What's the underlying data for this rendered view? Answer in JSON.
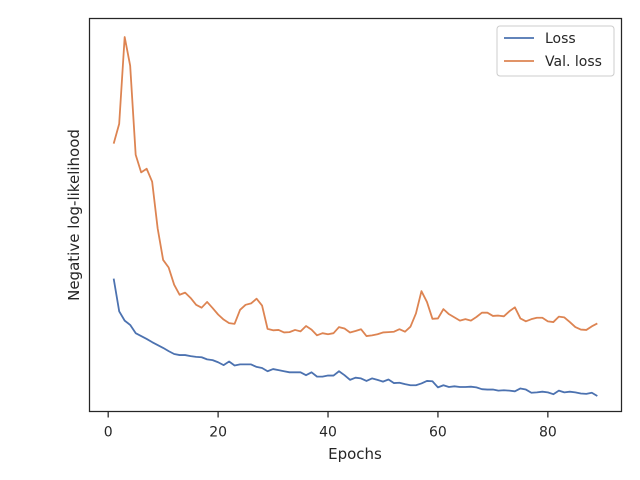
{
  "chart_data": {
    "type": "line",
    "title": "",
    "xlabel": "Epochs",
    "ylabel": "Negative log-likelihood",
    "xlim": [
      -3.4,
      93.4
    ],
    "ylim": [
      0,
      100
    ],
    "xticks": [
      0,
      20,
      40,
      60,
      80
    ],
    "xtick_labels": [
      "0",
      "20",
      "40",
      "60",
      "80"
    ],
    "show_yticks": false,
    "grid": false,
    "legend": "upper right",
    "x": [
      1,
      2,
      3,
      4,
      5,
      6,
      7,
      8,
      9,
      10,
      11,
      12,
      13,
      14,
      15,
      16,
      17,
      18,
      19,
      20,
      21,
      22,
      23,
      24,
      25,
      26,
      27,
      28,
      29,
      30,
      31,
      32,
      33,
      34,
      35,
      36,
      37,
      38,
      39,
      40,
      41,
      42,
      43,
      44,
      45,
      46,
      47,
      48,
      49,
      50,
      51,
      52,
      53,
      54,
      55,
      56,
      57,
      58,
      59,
      60,
      61,
      62,
      63,
      64,
      65,
      66,
      67,
      68,
      69,
      70,
      71,
      72,
      73,
      74,
      75,
      76,
      77,
      78,
      79,
      80,
      81,
      82,
      83,
      84,
      85,
      86,
      87,
      88,
      89
    ],
    "series": [
      {
        "name": "Loss",
        "color": "#4c72b0",
        "values": [
          32.7,
          23.6,
          21.0,
          19.8,
          17.5,
          16.7,
          15.9,
          15.0,
          14.2,
          13.4,
          12.5,
          11.7,
          11.4,
          11.4,
          11.1,
          10.9,
          10.8,
          10.2,
          10.0,
          9.4,
          8.6,
          9.6,
          8.5,
          8.8,
          8.8,
          8.8,
          8.1,
          7.8,
          6.9,
          7.5,
          7.2,
          6.9,
          6.6,
          6.6,
          6.6,
          5.8,
          6.6,
          5.4,
          5.4,
          5.7,
          5.7,
          6.9,
          5.8,
          4.5,
          5.1,
          4.9,
          4.2,
          4.9,
          4.5,
          4.0,
          4.6,
          3.6,
          3.7,
          3.3,
          3.0,
          3.0,
          3.5,
          4.2,
          4.1,
          2.4,
          3.0,
          2.5,
          2.7,
          2.5,
          2.5,
          2.6,
          2.4,
          1.9,
          1.8,
          1.8,
          1.5,
          1.6,
          1.5,
          1.3,
          2.1,
          1.8,
          0.9,
          1.0,
          1.2,
          1.0,
          0.5,
          1.5,
          1.0,
          1.2,
          1.0,
          0.7,
          0.6,
          0.9,
          0.0
        ]
      },
      {
        "name": "Val. loss",
        "color": "#dd8452",
        "values": [
          70.3,
          75.8,
          100.0,
          92.0,
          67.2,
          62.3,
          63.3,
          59.7,
          46.7,
          37.9,
          35.8,
          31.0,
          28.2,
          28.8,
          27.3,
          25.4,
          24.6,
          26.2,
          24.5,
          22.7,
          21.3,
          20.3,
          20.1,
          24.0,
          25.4,
          25.8,
          27.1,
          25.2,
          18.7,
          18.3,
          18.4,
          17.7,
          17.8,
          18.4,
          18.0,
          19.5,
          18.5,
          16.9,
          17.5,
          17.2,
          17.5,
          19.2,
          18.8,
          17.7,
          18.1,
          18.6,
          16.7,
          16.9,
          17.2,
          17.7,
          17.8,
          17.9,
          18.6,
          17.9,
          19.3,
          23.0,
          29.2,
          26.2,
          21.5,
          21.6,
          24.2,
          22.8,
          21.9,
          21.0,
          21.4,
          21.0,
          22.0,
          23.2,
          23.2,
          22.3,
          22.4,
          22.2,
          23.6,
          24.7,
          21.6,
          20.8,
          21.4,
          21.8,
          21.8,
          20.8,
          20.6,
          22.1,
          21.9,
          20.6,
          19.2,
          18.5,
          18.4,
          19.4,
          20.2
        ]
      }
    ]
  }
}
